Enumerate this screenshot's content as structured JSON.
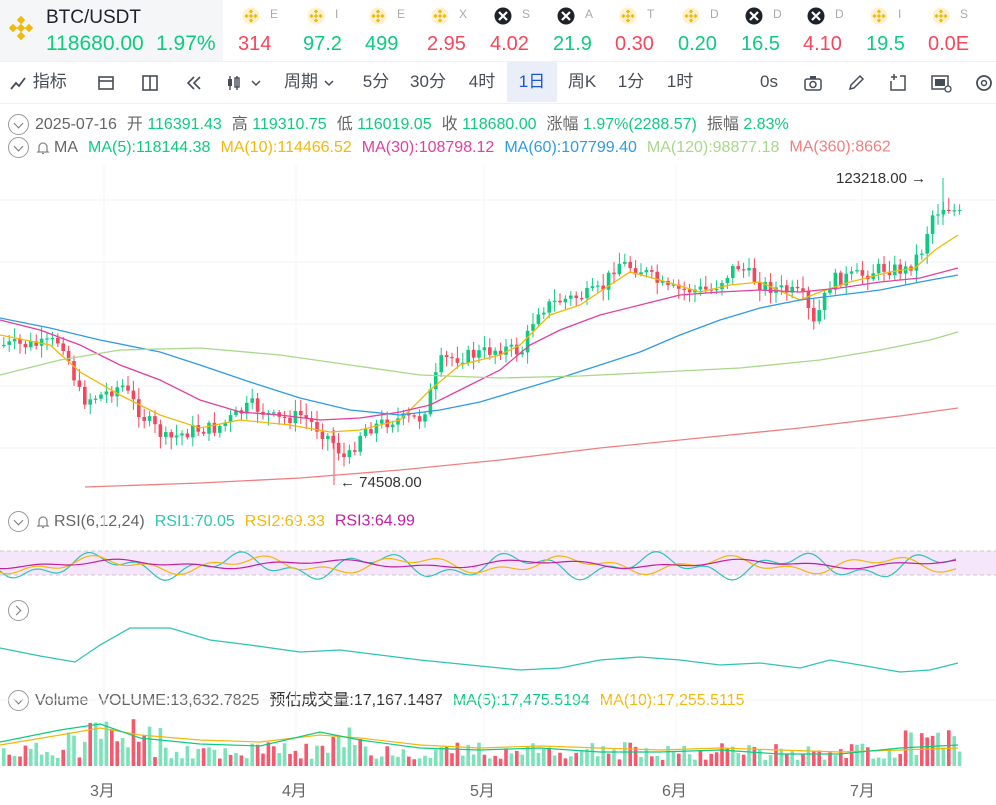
{
  "ticker": {
    "symbol": "BTC/USDT",
    "price": "118680.00",
    "change": "1.97%",
    "items": [
      {
        "icon": "bnb-icon",
        "tiny": "E",
        "value": "314",
        "color": "#f6465d"
      },
      {
        "icon": "bnb-icon",
        "tiny": "I",
        "value": "97.2",
        "color": "#0ecb81"
      },
      {
        "icon": "bnb-icon",
        "tiny": "E",
        "value": "499",
        "color": "#0ecb81"
      },
      {
        "icon": "bnb-icon",
        "tiny": "X",
        "value": "2.95",
        "color": "#f6465d"
      },
      {
        "icon": "binance-x-icon",
        "tiny": "S",
        "value": "4.02",
        "color": "#f6465d"
      },
      {
        "icon": "binance-x-icon",
        "tiny": "A",
        "value": "21.9",
        "color": "#0ecb81"
      },
      {
        "icon": "bnb-icon",
        "tiny": "T",
        "value": "0.30",
        "color": "#f6465d"
      },
      {
        "icon": "bnb-icon",
        "tiny": "D",
        "value": "0.20",
        "color": "#0ecb81"
      },
      {
        "icon": "binance-x-icon",
        "tiny": "D",
        "value": "16.5",
        "color": "#0ecb81"
      },
      {
        "icon": "binance-x-icon",
        "tiny": "D",
        "value": "4.10",
        "color": "#f6465d"
      },
      {
        "icon": "bnb-icon",
        "tiny": "I",
        "value": "19.5",
        "color": "#0ecb81"
      },
      {
        "icon": "bnb-icon",
        "tiny": "S",
        "value": "0.0E",
        "color": "#f6465d"
      }
    ]
  },
  "toolbar": {
    "indicator": "指标",
    "period": "周期",
    "intervals": [
      "5分",
      "30分",
      "4时",
      "1日",
      "周K",
      "1分",
      "1时"
    ],
    "active_interval": "1日",
    "zero_s": "0s"
  },
  "ohlc": {
    "date": "2025-07-16",
    "open_label": "开",
    "open": "116391.43",
    "high_label": "高",
    "high": "119310.75",
    "low_label": "低",
    "low": "116019.05",
    "close_label": "收",
    "close": "118680.00",
    "change_label": "涨幅",
    "change": "1.97%(2288.57)",
    "amp_label": "振幅",
    "amp": "2.83%"
  },
  "ma": {
    "label": "MA",
    "ma5": "MA(5):118144.38",
    "ma10": "MA(10):114466.52",
    "ma30": "MA(30):108798.12",
    "ma60": "MA(60):107799.40",
    "ma120": "MA(120):98877.18",
    "ma360": "MA(360):8662"
  },
  "rsi": {
    "label": "RSI(6,12,24)",
    "rsi1": "RSI1:70.05",
    "rsi2": "RSI2:69.33",
    "rsi3": "RSI3:64.99"
  },
  "volume": {
    "label": "Volume",
    "value": "VOLUME:13,632.7825",
    "est": "预估成交量:17,167.1487",
    "ma5": "MA(5):17,475.5194",
    "ma10": "MA(10):17,255.5115"
  },
  "chart_annotations": {
    "high_marker": "123218.00",
    "low_marker": "74508.00"
  },
  "x_axis": [
    "3月",
    "4月",
    "5月",
    "6月",
    "7月"
  ],
  "colors": {
    "up": "#0ecb81",
    "down": "#f6465d",
    "ma5": "#f0b90b",
    "ma10": "#f0b90b",
    "ma30": "#e040a0",
    "ma60": "#2e9be6",
    "ma120": "#a8d88a",
    "ma360": "#f08080",
    "rsi1": "#2ec4b6",
    "rsi2": "#f0b90b",
    "rsi3": "#c020a0"
  }
}
